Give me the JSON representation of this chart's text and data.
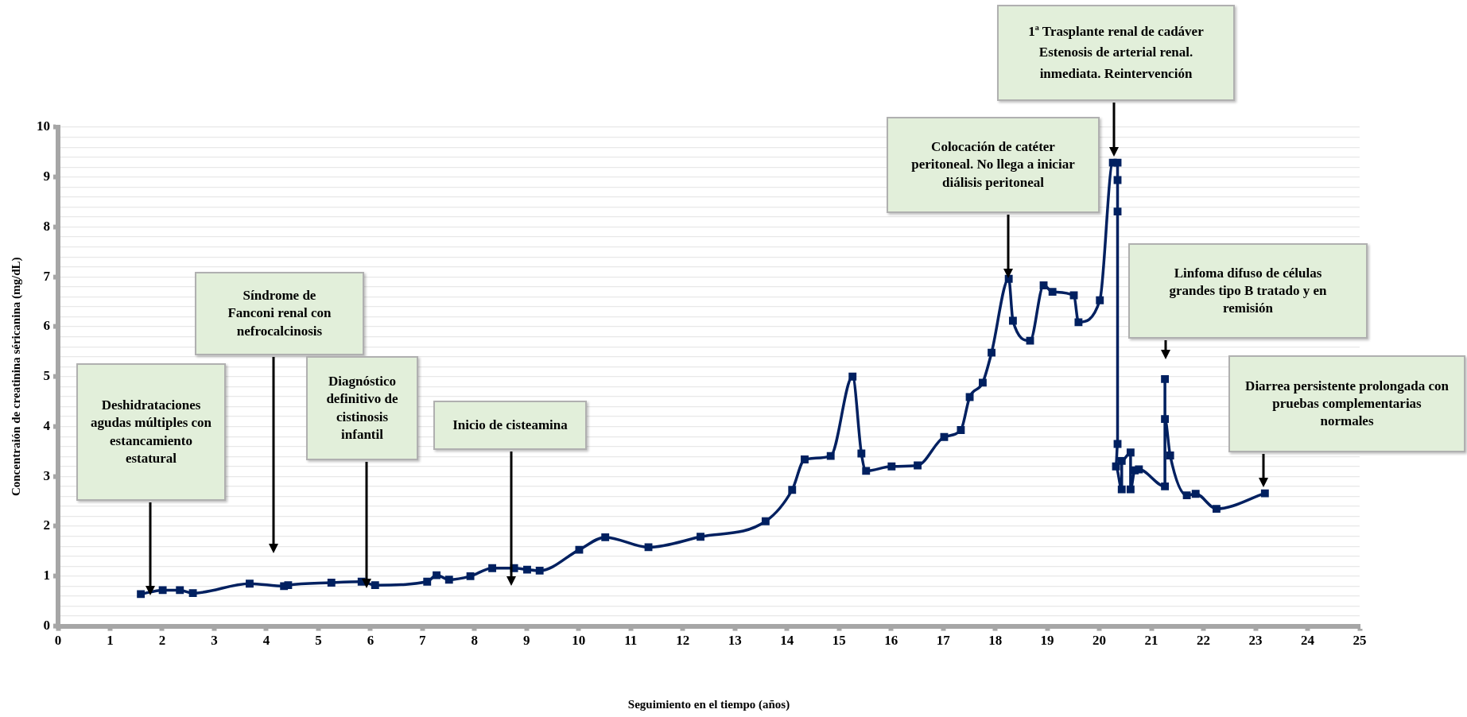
{
  "chart_data": {
    "type": "line",
    "xlabel": "Seguimiento en el tiempo (años)",
    "ylabel": "Concentraión de creatinina séricanina (mg/dL)",
    "xlim": [
      0,
      25
    ],
    "xticks": [
      0,
      1,
      2,
      3,
      4,
      5,
      6,
      7,
      8,
      9,
      10,
      11,
      12,
      13,
      14,
      15,
      16,
      17,
      18,
      19,
      20,
      21,
      22,
      23,
      24,
      25
    ],
    "ylim": [
      0,
      10
    ],
    "yticks": [
      0,
      {
        "value": 0.2,
        "label": null
      },
      {
        "value": 0.4,
        "label": null
      },
      {
        "value": 0.6,
        "label": null
      },
      {
        "value": 0.8,
        "label": null
      },
      1,
      {
        "value": 1.2,
        "label": null
      },
      {
        "value": 1.4,
        "label": null
      },
      {
        "value": 1.6,
        "label": null
      },
      {
        "value": 1.8,
        "label": null
      },
      2,
      {
        "value": 2.2,
        "label": null
      },
      {
        "value": 2.4,
        "label": null
      },
      {
        "value": 2.6,
        "label": null
      },
      {
        "value": 2.8,
        "label": null
      },
      3,
      {
        "value": 3.2,
        "label": null
      },
      {
        "value": 3.4,
        "label": null
      },
      {
        "value": 3.6,
        "label": null
      },
      {
        "value": 3.8,
        "label": null
      },
      4,
      {
        "value": 4.2,
        "label": null
      },
      {
        "value": 4.4,
        "label": null
      },
      {
        "value": 4.6,
        "label": null
      },
      {
        "value": 4.8,
        "label": null
      },
      5,
      {
        "value": 5.2,
        "label": null
      },
      {
        "value": 5.4,
        "label": null
      },
      {
        "value": 5.6,
        "label": null
      },
      {
        "value": 5.8,
        "label": null
      },
      6,
      {
        "value": 6.2,
        "label": null
      },
      {
        "value": 6.4,
        "label": null
      },
      {
        "value": 6.6,
        "label": null
      },
      {
        "value": 6.8,
        "label": null
      },
      7,
      {
        "value": 7.2,
        "label": null
      },
      {
        "value": 7.4,
        "label": null
      },
      {
        "value": 7.6,
        "label": null
      },
      {
        "value": 7.8,
        "label": null
      },
      8,
      {
        "value": 8.2,
        "label": null
      },
      {
        "value": 8.4,
        "label": null
      },
      {
        "value": 8.6,
        "label": null
      },
      {
        "value": 8.8,
        "label": null
      },
      9,
      {
        "value": 9.2,
        "label": null
      },
      {
        "value": 9.4,
        "label": null
      },
      {
        "value": 9.6,
        "label": null
      },
      {
        "value": 9.8,
        "label": null
      },
      10
    ],
    "grid": "y",
    "legend": false,
    "marker": "square",
    "line_style": "solid",
    "x": [
      1.59,
      2.01,
      2.34,
      2.59,
      3.68,
      4.34,
      4.42,
      5.25,
      5.83,
      6.09,
      7.09,
      7.27,
      7.51,
      7.92,
      8.34,
      8.76,
      9.01,
      9.25,
      10.01,
      10.51,
      11.34,
      12.34,
      13.59,
      14.1,
      14.34,
      14.84,
      15.26,
      15.43,
      15.52,
      16.01,
      16.51,
      17.02,
      17.34,
      17.51,
      17.76,
      17.93,
      18.26,
      18.34,
      18.67,
      18.93,
      19.1,
      19.51,
      19.6,
      20.01,
      20.26,
      20.35,
      20.35,
      20.35,
      20.35,
      20.32,
      20.43,
      20.43,
      20.6,
      20.6,
      20.68,
      20.76,
      21.26,
      21.26,
      21.26,
      21.36,
      21.68,
      21.85,
      22.25,
      23.18
    ],
    "series": [
      {
        "color": "#002060",
        "values": [
          0.64,
          0.72,
          0.72,
          0.66,
          0.85,
          0.8,
          0.82,
          0.87,
          0.89,
          0.82,
          0.89,
          1.02,
          0.93,
          1.0,
          1.16,
          1.16,
          1.13,
          1.11,
          1.53,
          1.78,
          1.58,
          1.79,
          2.1,
          2.73,
          3.34,
          3.41,
          5.0,
          3.46,
          3.11,
          3.2,
          3.22,
          3.79,
          3.93,
          4.59,
          4.88,
          5.48,
          6.96,
          6.12,
          5.72,
          6.83,
          6.7,
          6.63,
          6.09,
          6.53,
          9.29,
          9.29,
          8.94,
          8.31,
          3.65,
          3.2,
          2.74,
          3.31,
          3.48,
          2.74,
          3.12,
          3.14,
          2.8,
          4.95,
          4.15,
          3.42,
          2.62,
          2.65,
          2.35,
          2.66
        ]
      }
    ],
    "annotations": [
      "Deshidrataciones agudas múltiples con estancamiento estatural",
      "Síndrome de Fanconi renal con nefrocalcinosis",
      "Diagnóstico definitivo de cistinosis infantil",
      "Inicio de cisteamina",
      "Colocación de catéter peritoneal. No llega a iniciar diálisis peritoneal",
      "1ª Trasplante renal de cadáver\nEstenosis de arterial renal. inmediata. Reintervención",
      "Linfoma difuso de células grandes tipo B tratado y en remisión",
      "Diarrea persistente prolongada con pruebas complementarias normales"
    ]
  }
}
